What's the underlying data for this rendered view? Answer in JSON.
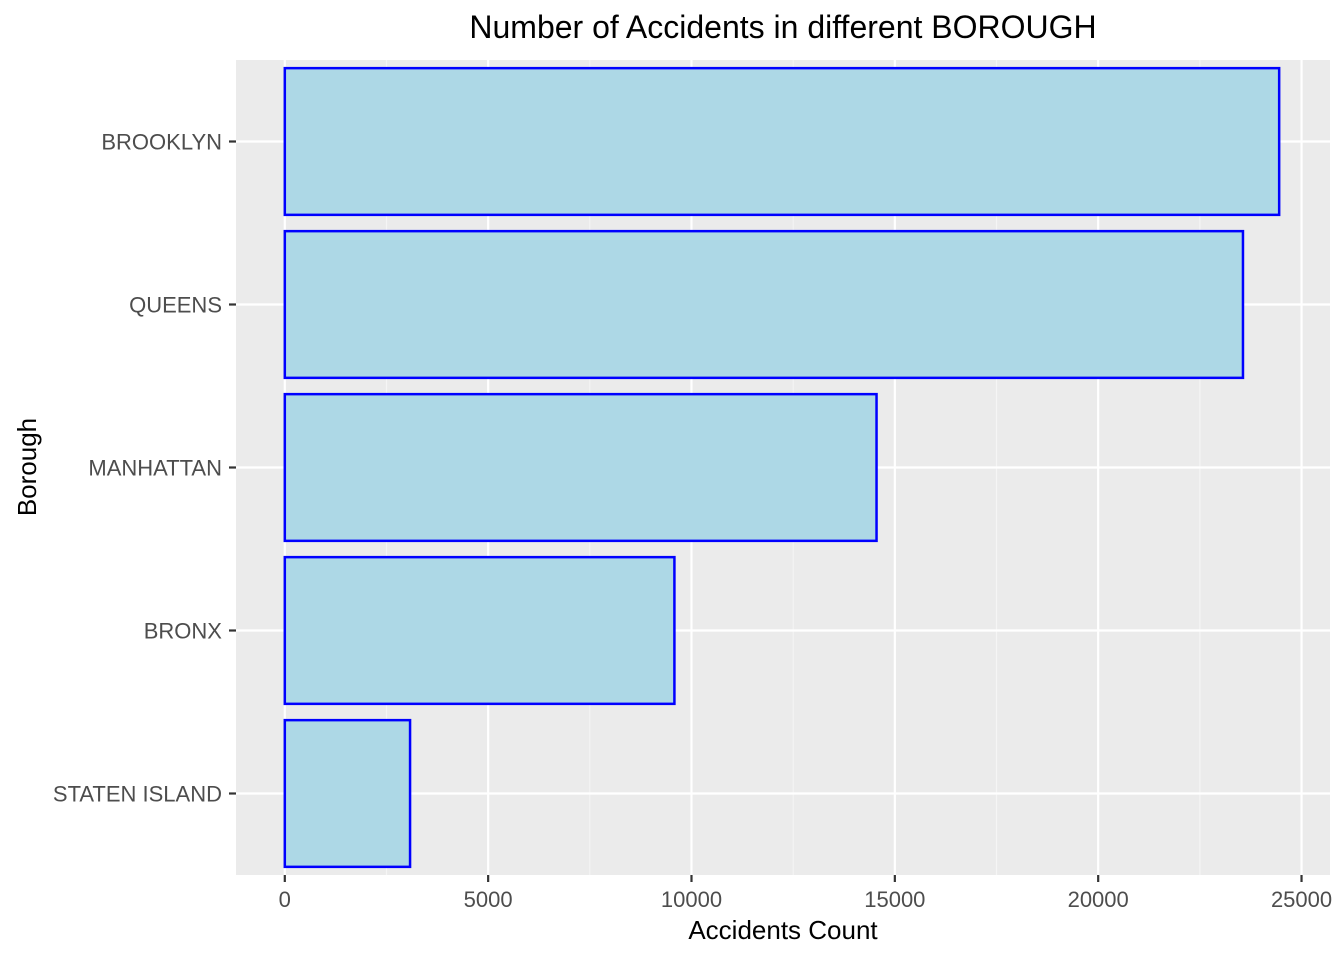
{
  "chart_data": {
    "type": "bar",
    "orientation": "horizontal",
    "title": "Number of Accidents in different BOROUGH",
    "xlabel": "Accidents Count",
    "ylabel": "Borough",
    "categories": [
      "BROOKLYN",
      "QUEENS",
      "MANHATTAN",
      "BRONX",
      "STATEN ISLAND"
    ],
    "values": [
      24450,
      23560,
      14550,
      9580,
      3080
    ],
    "xlim": [
      -1200,
      25700
    ],
    "x_ticks": [
      0,
      5000,
      10000,
      15000,
      20000,
      25000
    ],
    "x_tick_labels": [
      "0",
      "5000",
      "10000",
      "15000",
      "20000",
      "25000"
    ],
    "grid": true,
    "legend": "none",
    "colors": {
      "bar_fill": "#add8e6",
      "bar_outline": "#0000ff",
      "panel_background": "#ebebeb",
      "grid_major": "#ffffff",
      "grid_minor": "#f5f5f5",
      "tick_text": "#4d4d4d",
      "title_text": "#000000"
    }
  }
}
